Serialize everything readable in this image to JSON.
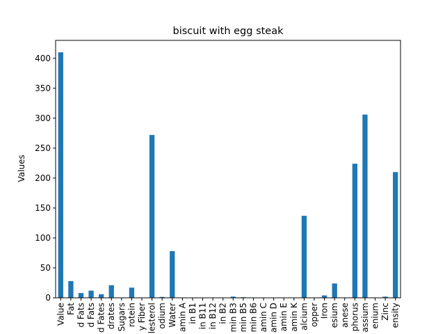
{
  "chart_data": {
    "type": "bar",
    "title": "biscuit with egg steak",
    "xlabel": "",
    "ylabel": "Values",
    "ylim": [
      0,
      430
    ],
    "yticks": [
      0,
      50,
      100,
      150,
      200,
      250,
      300,
      350,
      400
    ],
    "grid": false,
    "legend": "none",
    "bar_color": "#1f77b4",
    "categories": [
      "Value",
      "Fat",
      "d Fats",
      "d Fats",
      "d Fates",
      "drates",
      "Sugars",
      "rotein",
      "y Fiber",
      "lesterol",
      "odium",
      "Water",
      "amin A",
      "in B1",
      "in B11",
      "in B12",
      "in B2",
      "min B3",
      "min B5",
      "min B6",
      "amin C",
      "amin D",
      "amin E",
      "amin K",
      "alcium",
      "opper",
      "Iron",
      "esium",
      "anese",
      "phorus",
      "assium",
      "enium",
      "Zinc",
      "ensity"
    ],
    "values": [
      410,
      28,
      8,
      12,
      6,
      21,
      0,
      17,
      0,
      272,
      1.5,
      78,
      0,
      0,
      0,
      0,
      0,
      2,
      1,
      0,
      0,
      0,
      0,
      0,
      137,
      0,
      4,
      24,
      0,
      224,
      306,
      0,
      2,
      210
    ]
  }
}
